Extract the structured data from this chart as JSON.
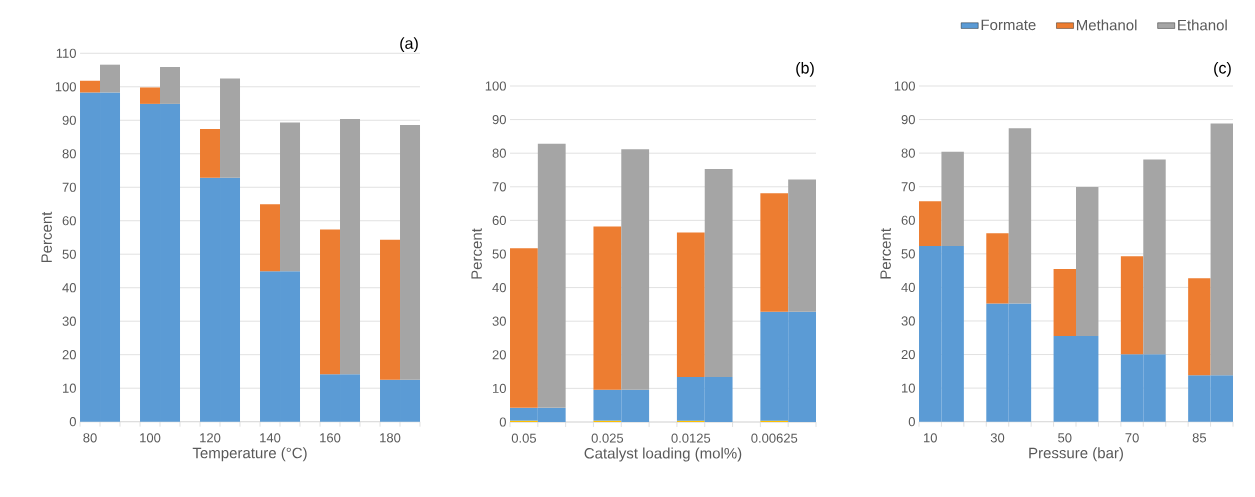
{
  "chart_data": [
    {
      "type": "bar",
      "stacked": true,
      "xlabel": "Temperature (°C)",
      "ylabel": "Percent",
      "annotations": [
        "(a)"
      ],
      "grid": "y",
      "legend": false,
      "categories": [
        "80",
        null,
        null,
        "100",
        null,
        null,
        "120",
        null,
        null,
        "140",
        null,
        null,
        "160",
        null,
        null,
        "180",
        null
      ],
      "ylim": [
        0,
        110
      ],
      "yticks": [
        0,
        10,
        20,
        30,
        40,
        50,
        60,
        70,
        80,
        90,
        100,
        110
      ],
      "series": [
        {
          "color": "#5b9bd5",
          "values": [
            98.3,
            98.3,
            null,
            94.9,
            94.9,
            null,
            72.8,
            72.8,
            null,
            44.9,
            44.9,
            null,
            14.2,
            14.2,
            null,
            12.5,
            12.5
          ]
        },
        {
          "color": "#ed7d31",
          "values": [
            3.5,
            null,
            null,
            4.9,
            null,
            null,
            14.6,
            null,
            null,
            20,
            null,
            null,
            43.2,
            null,
            null,
            41.8,
            null
          ]
        },
        {
          "color": "#a5a5a5",
          "values": [
            null,
            8.3,
            null,
            null,
            11,
            null,
            null,
            29.7,
            null,
            null,
            44.4,
            null,
            null,
            76.2,
            null,
            null,
            76.1
          ]
        }
      ]
    },
    {
      "type": "bar",
      "stacked": true,
      "xlabel": "Catalyst loading (mol%)",
      "ylabel": "Percent",
      "annotations": [
        "(b)"
      ],
      "grid": "y",
      "legend": false,
      "categories": [
        "0.05",
        null,
        null,
        "0.025",
        null,
        null,
        "0.0125",
        null,
        null,
        "0.00625",
        null
      ],
      "ylim": [
        0,
        100
      ],
      "yticks": [
        0,
        10,
        20,
        30,
        40,
        50,
        60,
        70,
        80,
        90,
        100
      ],
      "series": [
        {
          "color": "#ffc000",
          "values": [
            0.4,
            null,
            null,
            0.4,
            null,
            null,
            0.4,
            null,
            null,
            0.4,
            null
          ]
        },
        {
          "color": "#5b9bd5",
          "values": [
            3.8,
            4.2,
            null,
            9.2,
            9.6,
            null,
            13.0,
            13.4,
            null,
            32.4,
            32.8
          ]
        },
        {
          "color": "#ed7d31",
          "values": [
            47.5,
            null,
            null,
            48.6,
            null,
            null,
            43.0,
            null,
            null,
            35.3,
            null
          ]
        },
        {
          "color": "#a5a5a5",
          "values": [
            null,
            78.6,
            null,
            null,
            71.6,
            null,
            null,
            61.9,
            null,
            null,
            39.4
          ]
        }
      ]
    },
    {
      "type": "bar",
      "stacked": true,
      "xlabel": "Pressure (bar)",
      "ylabel": "Percent",
      "annotations": [
        "(c)"
      ],
      "grid": "y",
      "legend": "top right",
      "categories": [
        "10",
        null,
        null,
        "30",
        null,
        null,
        "50",
        null,
        null,
        "70",
        null,
        null,
        "85",
        null
      ],
      "ylim": [
        0,
        100
      ],
      "yticks": [
        0,
        10,
        20,
        30,
        40,
        50,
        60,
        70,
        80,
        90,
        100
      ],
      "series": [
        {
          "name": "Formate",
          "color": "#5b9bd5",
          "values": [
            52.3,
            52.3,
            null,
            35.2,
            35.2,
            null,
            25.5,
            25.5,
            null,
            20.1,
            20.1,
            null,
            13.8,
            13.8
          ]
        },
        {
          "name": "Methanol",
          "color": "#ed7d31",
          "values": [
            13.4,
            null,
            null,
            20.9,
            null,
            null,
            20,
            null,
            null,
            29.2,
            null,
            null,
            28.9,
            null
          ]
        },
        {
          "name": "Ethanol",
          "color": "#a5a5a5",
          "values": [
            null,
            28.1,
            null,
            null,
            52.2,
            null,
            null,
            44.4,
            null,
            null,
            58,
            null,
            null,
            75
          ]
        }
      ]
    }
  ]
}
